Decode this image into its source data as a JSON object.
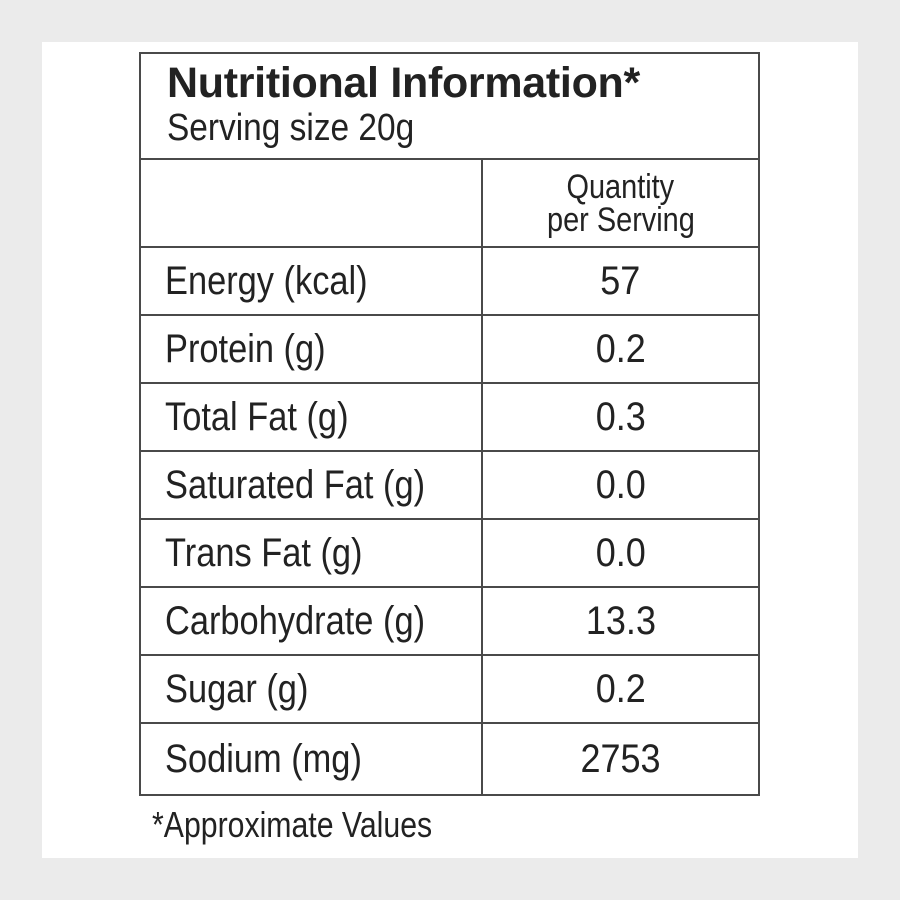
{
  "label": {
    "title": "Nutritional Information*",
    "serving_size": "Serving size 20g",
    "column_header_line1": "Quantity",
    "column_header_line2": "per Serving",
    "rows": [
      {
        "name": "Energy (kcal)",
        "value": "57"
      },
      {
        "name": "Protein (g)",
        "value": "0.2"
      },
      {
        "name": "Total Fat (g)",
        "value": "0.3"
      },
      {
        "name": "Saturated Fat (g)",
        "value": "0.0"
      },
      {
        "name": "Trans Fat (g)",
        "value": "0.0"
      },
      {
        "name": "Carbohydrate (g)",
        "value": "13.3"
      },
      {
        "name": "Sugar (g)",
        "value": "0.2"
      },
      {
        "name": "Sodium (mg)",
        "value": "2753"
      }
    ],
    "footnote": "*Approximate Values"
  }
}
